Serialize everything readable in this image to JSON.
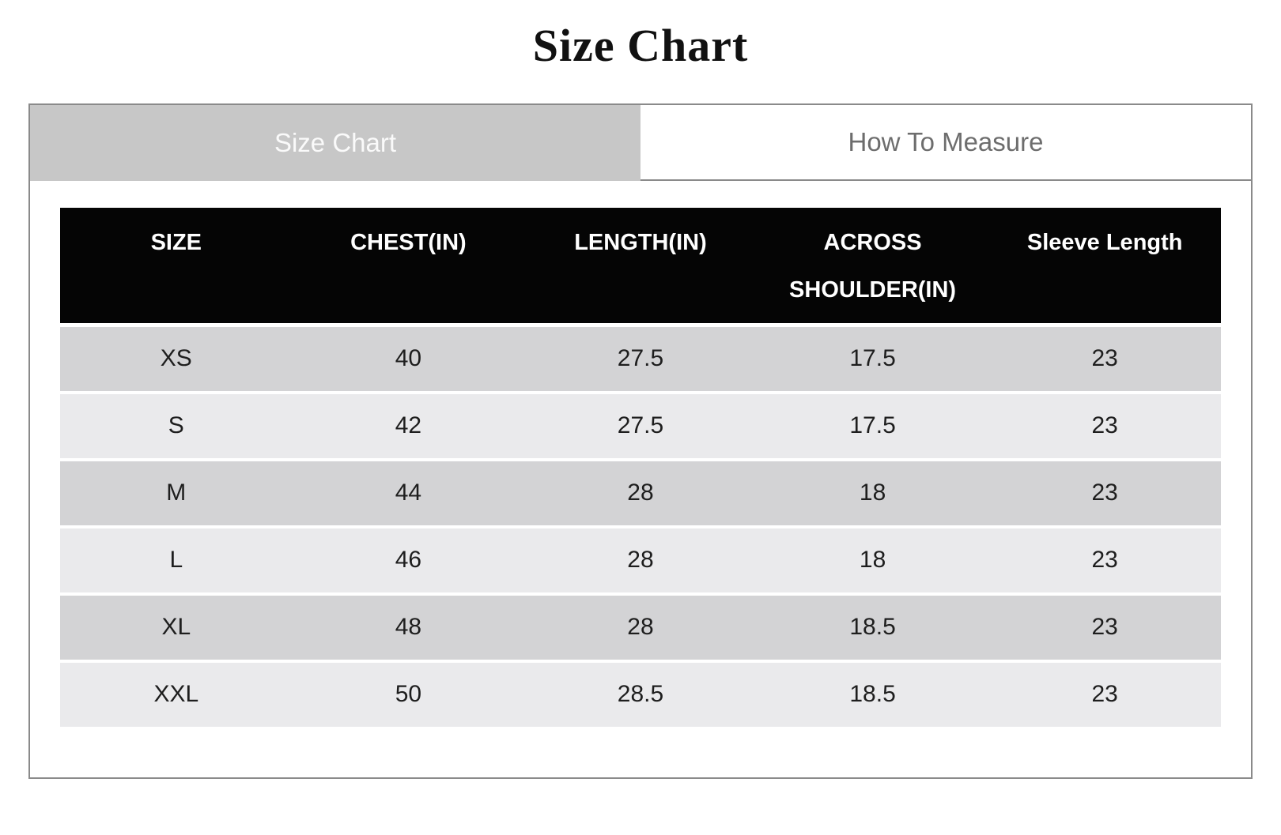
{
  "page": {
    "title": "Size Chart"
  },
  "tabs": {
    "size_chart": {
      "label": "Size Chart",
      "active": true
    },
    "how_to_measure": {
      "label": "How To Measure",
      "active": false
    }
  },
  "table": {
    "headers": [
      "SIZE",
      "CHEST(IN)",
      "LENGTH(IN)",
      "ACROSS SHOULDER(IN)",
      "Sleeve Length"
    ],
    "rows": [
      [
        "XS",
        "40",
        "27.5",
        "17.5",
        "23"
      ],
      [
        "S",
        "42",
        "27.5",
        "17.5",
        "23"
      ],
      [
        "M",
        "44",
        "28",
        "18",
        "23"
      ],
      [
        "L",
        "46",
        "28",
        "18",
        "23"
      ],
      [
        "XL",
        "48",
        "28",
        "18.5",
        "23"
      ],
      [
        "XXL",
        "50",
        "28.5",
        "18.5",
        "23"
      ]
    ]
  },
  "colors": {
    "header_bg": "#050505",
    "header_text": "#ffffff",
    "row_odd": "#d3d3d5",
    "row_even": "#eaeaec",
    "tab_active_bg": "#c7c7c7",
    "tab_active_text": "#fafafa",
    "tab_inactive_text": "#6d6d6d",
    "border": "#8a8a8a"
  }
}
